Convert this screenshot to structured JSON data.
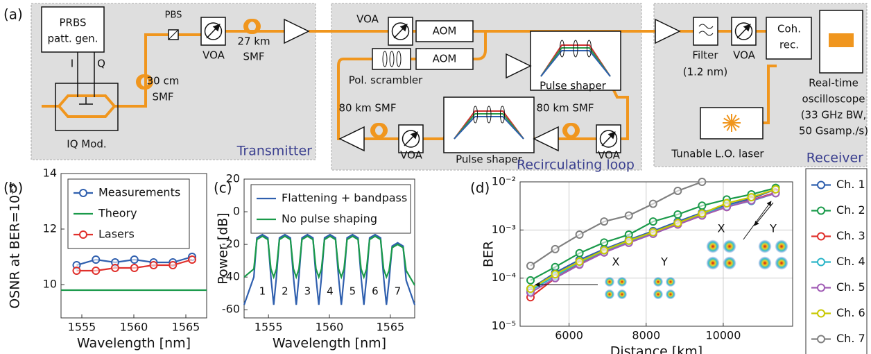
{
  "diagram": {
    "labels": [
      "(a)",
      "PRBS",
      "patt. gen.",
      "I",
      "Q",
      "IQ Mod.",
      "30 cm",
      "SMF",
      "PBS",
      "VOA",
      "27 km",
      "SMF",
      "Transmitter",
      "VOA",
      "AOM",
      "AOM",
      "Pol. scrambler",
      "Pulse shaper",
      "80 km SMF",
      "VOA",
      "Pulse shaper",
      "80 km SMF",
      "VOA",
      "Recirculating loop",
      "Filter",
      "(1.2 nm)",
      "VOA",
      "Coh.",
      "rec.",
      "Real-time",
      "oscilloscope",
      "(33 GHz BW,",
      "50 Gsamp./s)",
      "Tunable L.O. laser",
      "Receiver"
    ]
  },
  "chart_data": [
    {
      "type": "line",
      "panel_label": "(b)",
      "xlabel": "Wavelength [nm]",
      "ylabel": "OSNR at BER=10⁻³",
      "xlim": [
        1553,
        1567
      ],
      "xticks": [
        1555,
        1560,
        1565
      ],
      "ylim": [
        8.8,
        14
      ],
      "yticks": [
        10,
        12,
        14
      ],
      "grid": false,
      "legend": "upper left",
      "series": [
        {
          "name": "Measurements",
          "color": "#2f5fae",
          "marker": true,
          "x": [
            1554.5,
            1556.35,
            1558.2,
            1560.05,
            1561.9,
            1563.75,
            1565.6
          ],
          "values": [
            10.7,
            10.9,
            10.8,
            10.9,
            10.8,
            10.8,
            11.0
          ]
        },
        {
          "name": "Theory",
          "color": "#1a9a4a",
          "marker": false,
          "x": [
            1553,
            1567
          ],
          "values": [
            9.8,
            9.8
          ]
        },
        {
          "name": "Lasers",
          "color": "#e0302c",
          "marker": true,
          "x": [
            1554.5,
            1556.35,
            1558.2,
            1560.05,
            1561.9,
            1563.75,
            1565.6
          ],
          "values": [
            10.5,
            10.5,
            10.6,
            10.6,
            10.7,
            10.7,
            10.9
          ]
        }
      ]
    },
    {
      "type": "line",
      "panel_label": "(c)",
      "xlabel": "Wavelength [nm]",
      "ylabel": "Power [dB]",
      "xlim": [
        1553,
        1567
      ],
      "xticks": [
        1555,
        1560,
        1565
      ],
      "ylim": [
        -65,
        20
      ],
      "yticks": [
        -60,
        -40,
        -20,
        0,
        20
      ],
      "grid": false,
      "legend": "upper left",
      "x": [
        1553,
        1553.8,
        1554.05,
        1554.5,
        1554.95,
        1555.2,
        1555.43,
        1555.65,
        1555.9,
        1556.35,
        1556.8,
        1557.05,
        1557.28,
        1557.5,
        1557.75,
        1558.2,
        1558.65,
        1558.9,
        1559.13,
        1559.35,
        1559.6,
        1560.05,
        1560.5,
        1560.75,
        1560.98,
        1561.2,
        1561.45,
        1561.9,
        1562.35,
        1562.6,
        1562.83,
        1563.05,
        1563.3,
        1563.75,
        1564.2,
        1564.45,
        1564.68,
        1564.9,
        1565.15,
        1565.6,
        1566.05,
        1566.3,
        1567
      ],
      "series": [
        {
          "name": "Flattening + bandpass",
          "color": "#2f5fae",
          "marker": false,
          "values": [
            -57,
            -40,
            -16,
            -14,
            -16,
            -40,
            -57,
            -40,
            -16,
            -14,
            -16,
            -40,
            -57,
            -40,
            -16,
            -14,
            -16,
            -40,
            -57,
            -40,
            -16,
            -14,
            -16,
            -40,
            -57,
            -40,
            -16,
            -14,
            -16,
            -40,
            -57,
            -40,
            -16,
            -14,
            -16,
            -40,
            -57,
            -42,
            -21,
            -19,
            -21,
            -42,
            -57
          ]
        },
        {
          "name": "No pulse shaping",
          "color": "#1a9a4a",
          "marker": false,
          "values": [
            -40,
            -35,
            -17,
            -15,
            -17,
            -35,
            -40,
            -35,
            -17,
            -15,
            -17,
            -35,
            -40,
            -35,
            -17,
            -15,
            -17,
            -35,
            -40,
            -35,
            -17,
            -15,
            -17,
            -35,
            -40,
            -35,
            -17,
            -15,
            -17,
            -35,
            -40,
            -35,
            -17,
            -15,
            -17,
            -35,
            -40,
            -36,
            -22,
            -20,
            -22,
            -36,
            -45
          ]
        }
      ],
      "channel_labels": [
        "1",
        "2",
        "3",
        "4",
        "5",
        "6",
        "7"
      ]
    },
    {
      "type": "line",
      "panel_label": "(d)",
      "xlabel": "Distance [km]",
      "ylabel": "BER",
      "ylog": true,
      "xlim": [
        4730,
        11800
      ],
      "xticks": [
        6000,
        8000,
        10000
      ],
      "ylim": [
        1e-05,
        0.01
      ],
      "yticks": [
        {
          "value": 1e-05,
          "label": "10⁻⁵"
        },
        {
          "value": 0.0001,
          "label": "10⁻⁴"
        },
        {
          "value": 0.001,
          "label": "10⁻³"
        },
        {
          "value": 0.01,
          "label": "10⁻²"
        }
      ],
      "grid": true,
      "legend": "outside right",
      "x": [
        5000,
        5640,
        6270,
        6910,
        7550,
        8180,
        8820,
        9450,
        10090,
        10730,
        11360
      ],
      "series": [
        {
          "name": "Ch. 1",
          "color": "#2f5fae",
          "marker": true,
          "values": [
            6e-05,
            0.00013,
            0.00024,
            0.0004,
            0.00063,
            0.00095,
            0.0015,
            0.0023,
            0.0033,
            0.0045,
            0.007
          ]
        },
        {
          "name": "Ch. 2",
          "color": "#1a9a4a",
          "marker": true,
          "values": [
            9e-05,
            0.00017,
            0.00033,
            0.00055,
            0.0008,
            0.0015,
            0.0021,
            0.0032,
            0.0043,
            0.0055,
            0.0075
          ]
        },
        {
          "name": "Ch. 3",
          "color": "#e0302c",
          "marker": true,
          "values": [
            4e-05,
            0.0001,
            0.0002,
            0.00035,
            0.00055,
            0.00085,
            0.0013,
            0.002,
            0.003,
            0.0042,
            0.006
          ]
        },
        {
          "name": "Ch. 4",
          "color": "#2bb5c8",
          "marker": true,
          "values": [
            5.5e-05,
            0.00011,
            0.00021,
            0.00037,
            0.00058,
            0.00088,
            0.0014,
            0.0021,
            0.0031,
            0.004,
            0.0058
          ]
        },
        {
          "name": "Ch. 5",
          "color": "#a05bb5",
          "marker": true,
          "values": [
            5e-05,
            0.0001,
            0.00019,
            0.00034,
            0.00054,
            0.00083,
            0.0013,
            0.002,
            0.003,
            0.0041,
            0.0058
          ]
        },
        {
          "name": "Ch. 6",
          "color": "#c8c800",
          "marker": true,
          "values": [
            6e-05,
            0.00012,
            0.00022,
            0.00038,
            0.0006,
            0.0009,
            0.0014,
            0.0022,
            0.0036,
            0.0048,
            0.007
          ]
        },
        {
          "name": "Ch. 7",
          "color": "#808080",
          "marker": true,
          "values": [
            0.00018,
            0.0004,
            0.0008,
            0.0015,
            0.002,
            0.0035,
            0.0065,
            0.01,
            null,
            null,
            null
          ]
        }
      ],
      "annotations": [
        "X",
        "Y",
        "X",
        "Y"
      ]
    }
  ]
}
